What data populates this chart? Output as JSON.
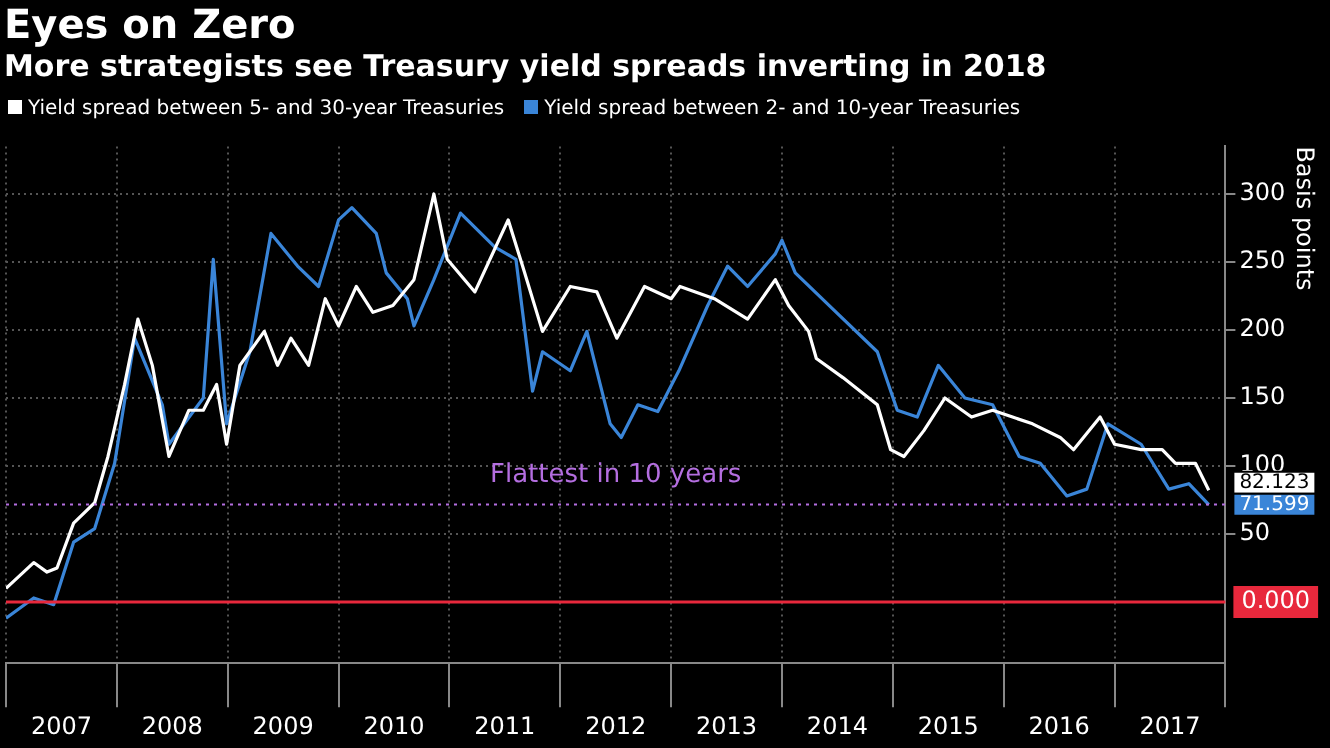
{
  "chart_data": {
    "type": "line",
    "title": "Eyes on Zero",
    "subtitle": "More strategists see Treasury yield spreads inverting in 2018",
    "ylabel": "Basis points",
    "xlim": [
      2007,
      2018
    ],
    "xticks": [
      {
        "value": 2007,
        "label": null
      },
      {
        "value": 2007.5,
        "label": "2007"
      },
      {
        "value": 2008,
        "label": null
      },
      {
        "value": 2008.5,
        "label": "2008"
      },
      {
        "value": 2009,
        "label": null
      },
      {
        "value": 2009.5,
        "label": "2009"
      },
      {
        "value": 2010,
        "label": null
      },
      {
        "value": 2010.5,
        "label": "2010"
      },
      {
        "value": 2011,
        "label": null
      },
      {
        "value": 2011.5,
        "label": "2011"
      },
      {
        "value": 2012,
        "label": null
      },
      {
        "value": 2012.5,
        "label": "2012"
      },
      {
        "value": 2013,
        "label": null
      },
      {
        "value": 2013.5,
        "label": "2013"
      },
      {
        "value": 2014,
        "label": null
      },
      {
        "value": 2014.5,
        "label": "2014"
      },
      {
        "value": 2015,
        "label": null
      },
      {
        "value": 2015.5,
        "label": "2015"
      },
      {
        "value": 2016,
        "label": null
      },
      {
        "value": 2016.5,
        "label": "2016"
      },
      {
        "value": 2017,
        "label": null
      },
      {
        "value": 2017.5,
        "label": "2017"
      },
      {
        "value": 2018,
        "label": null
      }
    ],
    "ylim": [
      -45,
      335
    ],
    "yticks": [
      50,
      100,
      150,
      200,
      250,
      300
    ],
    "grid": true,
    "legend": "top left",
    "line_style": "solid",
    "marker": "none",
    "ref_lines": [
      {
        "axis": "y",
        "value": 0,
        "label": "0.000",
        "color": "#e8283c",
        "line_style": "solid"
      },
      {
        "axis": "y",
        "value": 71.6,
        "label": "Flattest in 10 years",
        "color": "#b46ee0",
        "line_style": "dotted"
      }
    ],
    "series": [
      {
        "name": "Yield spread between 5- and 30-year Treasuries",
        "color": "#ffffff",
        "x": [
          2007.0,
          2007.25,
          2007.37,
          2007.46,
          2007.61,
          2007.8,
          2007.92,
          2008.07,
          2008.19,
          2008.32,
          2008.47,
          2008.65,
          2008.78,
          2008.9,
          2008.99,
          2009.11,
          2009.33,
          2009.45,
          2009.57,
          2009.73,
          2009.88,
          2010.0,
          2010.16,
          2010.31,
          2010.49,
          2010.68,
          2010.86,
          2010.98,
          2011.23,
          2011.53,
          2011.66,
          2011.84,
          2012.09,
          2012.33,
          2012.51,
          2012.76,
          2013.0,
          2013.08,
          2013.39,
          2013.69,
          2013.94,
          2014.06,
          2014.24,
          2014.31,
          2014.55,
          2014.86,
          2014.98,
          2015.1,
          2015.28,
          2015.47,
          2015.71,
          2015.9,
          2016.08,
          2016.26,
          2016.51,
          2016.63,
          2016.87,
          2017.0,
          2017.24,
          2017.43,
          2017.55,
          2017.73,
          2017.85
        ],
        "values": [
          10,
          29,
          22,
          25,
          58,
          73,
          107,
          160,
          208,
          174,
          107,
          141,
          141,
          160,
          116,
          174,
          199,
          174,
          194,
          174,
          223,
          203,
          232,
          213,
          218,
          237,
          300,
          252,
          228,
          281,
          247,
          199,
          232,
          228,
          194,
          232,
          223,
          232,
          223,
          208,
          237,
          218,
          199,
          179,
          165,
          145,
          112,
          107,
          126,
          150,
          136,
          141,
          136,
          131,
          121,
          112,
          136,
          116,
          112,
          112,
          102,
          102,
          82.123
        ],
        "value_labels": [
          null,
          null,
          null,
          null,
          null,
          null,
          null,
          null,
          null,
          null,
          null,
          null,
          null,
          null,
          null,
          null,
          null,
          null,
          null,
          null,
          null,
          null,
          null,
          null,
          null,
          null,
          null,
          null,
          null,
          null,
          null,
          null,
          null,
          null,
          null,
          null,
          null,
          null,
          null,
          null,
          null,
          null,
          null,
          null,
          null,
          null,
          null,
          null,
          null,
          null,
          null,
          null,
          null,
          null,
          null,
          null,
          null,
          null,
          null,
          null,
          null,
          null,
          "82.123"
        ]
      },
      {
        "name": "Yield spread between 2- and 10-year Treasuries",
        "color": "#3a85d8",
        "x": [
          2007.0,
          2007.25,
          2007.43,
          2007.61,
          2007.8,
          2007.98,
          2008.16,
          2008.41,
          2008.47,
          2008.78,
          2008.87,
          2008.99,
          2009.2,
          2009.39,
          2009.63,
          2009.82,
          2010.0,
          2010.12,
          2010.34,
          2010.43,
          2010.62,
          2010.68,
          2010.86,
          2011.1,
          2011.41,
          2011.6,
          2011.75,
          2011.84,
          2012.09,
          2012.24,
          2012.45,
          2012.55,
          2012.7,
          2012.88,
          2013.07,
          2013.33,
          2013.51,
          2013.69,
          2013.94,
          2014.0,
          2014.12,
          2014.49,
          2014.86,
          2015.04,
          2015.22,
          2015.41,
          2015.65,
          2015.9,
          2016.14,
          2016.33,
          2016.57,
          2016.75,
          2016.94,
          2017.24,
          2017.49,
          2017.67,
          2017.85
        ],
        "values": [
          -12,
          3,
          -2,
          44,
          54,
          102,
          194,
          145,
          116,
          150,
          252,
          131,
          184,
          271,
          247,
          232,
          281,
          290,
          271,
          242,
          223,
          203,
          237,
          286,
          261,
          252,
          155,
          184,
          170,
          199,
          131,
          121,
          145,
          140,
          170,
          218,
          247,
          232,
          256,
          266,
          242,
          213,
          184,
          141,
          136,
          174,
          150,
          145,
          107,
          102,
          78,
          83,
          131,
          116,
          83,
          87,
          71.599
        ],
        "value_labels": [
          null,
          null,
          null,
          null,
          null,
          null,
          null,
          null,
          null,
          null,
          null,
          null,
          null,
          null,
          null,
          null,
          null,
          null,
          null,
          null,
          null,
          null,
          null,
          null,
          null,
          null,
          null,
          null,
          null,
          null,
          null,
          null,
          null,
          null,
          null,
          null,
          null,
          null,
          null,
          null,
          null,
          null,
          null,
          null,
          null,
          null,
          null,
          null,
          null,
          null,
          null,
          null,
          null,
          null,
          null,
          null,
          "71.599"
        ]
      }
    ]
  }
}
